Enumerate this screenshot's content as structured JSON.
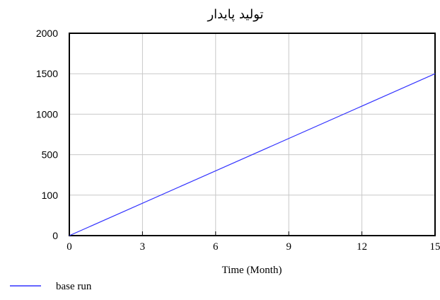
{
  "chart_data": {
    "type": "line",
    "title": "تولید پایدار",
    "xlabel": "Time (Month)",
    "ylabel": "",
    "x_ticks": [
      0,
      3,
      6,
      9,
      12,
      15
    ],
    "y_ticks": [
      "0",
      "100",
      "500",
      "1000",
      "1500",
      "2000"
    ],
    "xlim": [
      0,
      15
    ],
    "ylim": [
      0,
      2000
    ],
    "grid": true,
    "legend_position": "bottom-left",
    "series": [
      {
        "name": "base run",
        "color": "#3333ff",
        "points": [
          {
            "x": 0,
            "y": 0
          },
          {
            "x": 15,
            "y": 1600
          }
        ]
      }
    ]
  }
}
